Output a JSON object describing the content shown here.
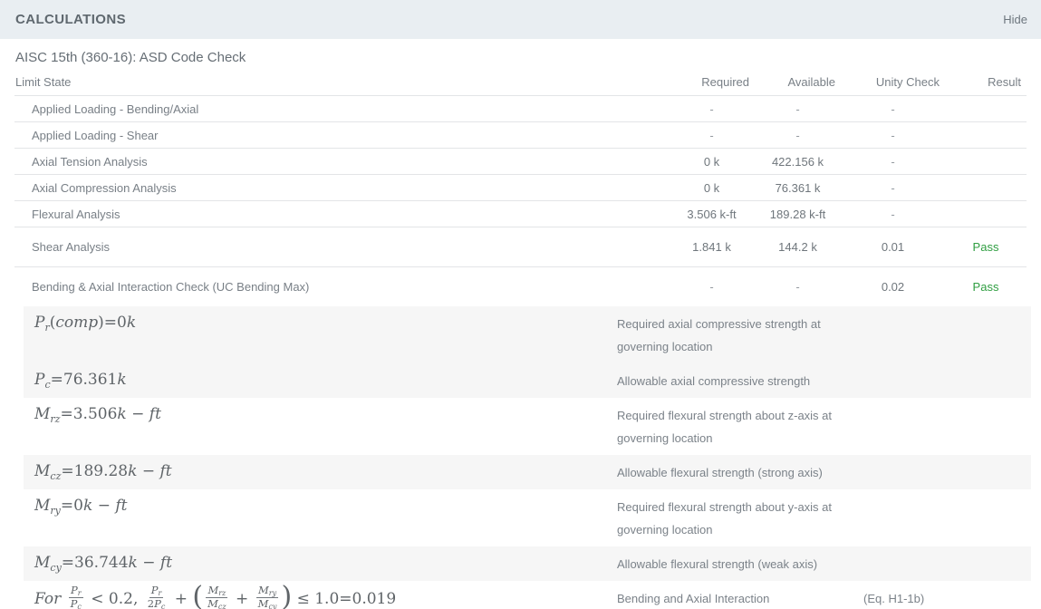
{
  "header": {
    "title": "CALCULATIONS",
    "hide_label": "Hide"
  },
  "section": {
    "title": "AISC 15th (360-16): ASD Code Check"
  },
  "colors": {
    "pass_green": "#2f9e41",
    "header_bar_bg": "#e9eef2",
    "row_shade": "#f6f6f6",
    "divider": "#e3e5e7"
  },
  "table": {
    "columns": [
      "Limit State",
      "Required",
      "Available",
      "Unity Check",
      "Result"
    ],
    "rows": [
      {
        "label": "Applied Loading - Bending/Axial",
        "required": "-",
        "available": "-",
        "unity": "-",
        "result": ""
      },
      {
        "label": "Applied Loading - Shear",
        "required": "-",
        "available": "-",
        "unity": "-",
        "result": ""
      },
      {
        "label": "Axial Tension Analysis",
        "required": "0 k",
        "available": "422.156 k",
        "unity": "-",
        "result": ""
      },
      {
        "label": "Axial Compression Analysis",
        "required": "0 k",
        "available": "76.361 k",
        "unity": "-",
        "result": ""
      },
      {
        "label": "Flexural Analysis",
        "required": "3.506 k-ft",
        "available": "189.28 k-ft",
        "unity": "-",
        "result": ""
      },
      {
        "label": "Shear Analysis",
        "required": "1.841 k",
        "available": "144.2 k",
        "unity": "0.01",
        "result": "Pass"
      },
      {
        "label": "Bending & Axial Interaction Check (UC Bending Max)",
        "required": "-",
        "available": "-",
        "unity": "0.02",
        "result": "Pass"
      }
    ]
  },
  "formula_rows": [
    {
      "shade": true,
      "eq": "",
      "desc": "Required axial compressive strength at governing location",
      "math": [
        {
          "t": "v",
          "v": "P",
          "s": "r"
        },
        {
          "t": "rm",
          "v": "("
        },
        {
          "t": "it",
          "v": "comp"
        },
        {
          "t": "rm",
          "v": ")="
        },
        {
          "t": "rm",
          "v": "0"
        },
        {
          "t": "it",
          "v": "k"
        }
      ]
    },
    {
      "shade": true,
      "eq": "",
      "desc": "Allowable axial compressive strength",
      "math": [
        {
          "t": "v",
          "v": "P",
          "s": "c"
        },
        {
          "t": "rm",
          "v": "="
        },
        {
          "t": "rm",
          "v": "76.361"
        },
        {
          "t": "it",
          "v": "k"
        }
      ]
    },
    {
      "shade": false,
      "eq": "",
      "desc": "Required flexural strength about z-axis at governing location",
      "math": [
        {
          "t": "v",
          "v": "M",
          "s": "rz"
        },
        {
          "t": "rm",
          "v": "="
        },
        {
          "t": "rm",
          "v": "3.506"
        },
        {
          "t": "it",
          "v": "k"
        },
        {
          "t": "rm",
          "v": " − "
        },
        {
          "t": "it",
          "v": "ft"
        }
      ]
    },
    {
      "shade": true,
      "eq": "",
      "desc": "Allowable flexural strength (strong axis)",
      "math": [
        {
          "t": "v",
          "v": "M",
          "s": "cz"
        },
        {
          "t": "rm",
          "v": "="
        },
        {
          "t": "rm",
          "v": "189.28"
        },
        {
          "t": "it",
          "v": "k"
        },
        {
          "t": "rm",
          "v": " − "
        },
        {
          "t": "it",
          "v": "ft"
        }
      ]
    },
    {
      "shade": false,
      "eq": "",
      "desc": "Required flexural strength about y-axis at governing location",
      "math": [
        {
          "t": "v",
          "v": "M",
          "s": "ry"
        },
        {
          "t": "rm",
          "v": "="
        },
        {
          "t": "rm",
          "v": "0"
        },
        {
          "t": "it",
          "v": "k"
        },
        {
          "t": "rm",
          "v": " − "
        },
        {
          "t": "it",
          "v": "ft"
        }
      ]
    },
    {
      "shade": true,
      "eq": "",
      "desc": "Allowable flexural strength (weak axis)",
      "math": [
        {
          "t": "v",
          "v": "M",
          "s": "cy"
        },
        {
          "t": "rm",
          "v": "="
        },
        {
          "t": "rm",
          "v": "36.744"
        },
        {
          "t": "it",
          "v": "k"
        },
        {
          "t": "rm",
          "v": " − "
        },
        {
          "t": "it",
          "v": "ft"
        }
      ]
    },
    {
      "shade": false,
      "eq": "(Eq. H1-1b)",
      "desc": "Bending and Axial Interaction",
      "math": [
        {
          "t": "it",
          "v": "For "
        },
        {
          "t": "f",
          "n": [
            {
              "t": "v",
              "v": "P",
              "s": "r"
            }
          ],
          "d": [
            {
              "t": "v",
              "v": "P",
              "s": "c"
            }
          ]
        },
        {
          "t": "rm",
          "v": " < 0.2, "
        },
        {
          "t": "f",
          "n": [
            {
              "t": "v",
              "v": "P",
              "s": "r"
            }
          ],
          "d": [
            {
              "t": "rm",
              "v": "2"
            },
            {
              "t": "v",
              "v": "P",
              "s": "c"
            }
          ]
        },
        {
          "t": "rm",
          "v": " + "
        },
        {
          "t": "big",
          "v": "("
        },
        {
          "t": "f",
          "n": [
            {
              "t": "v",
              "v": "M",
              "s": "rz"
            }
          ],
          "d": [
            {
              "t": "v",
              "v": "M",
              "s": "cz"
            }
          ]
        },
        {
          "t": "rm",
          "v": " + "
        },
        {
          "t": "f",
          "n": [
            {
              "t": "v",
              "v": "M",
              "s": "ry"
            }
          ],
          "d": [
            {
              "t": "v",
              "v": "M",
              "s": "cy"
            }
          ]
        },
        {
          "t": "big",
          "v": ")"
        },
        {
          "t": "rm",
          "v": " ≤ 1.0=0.019"
        }
      ]
    }
  ]
}
